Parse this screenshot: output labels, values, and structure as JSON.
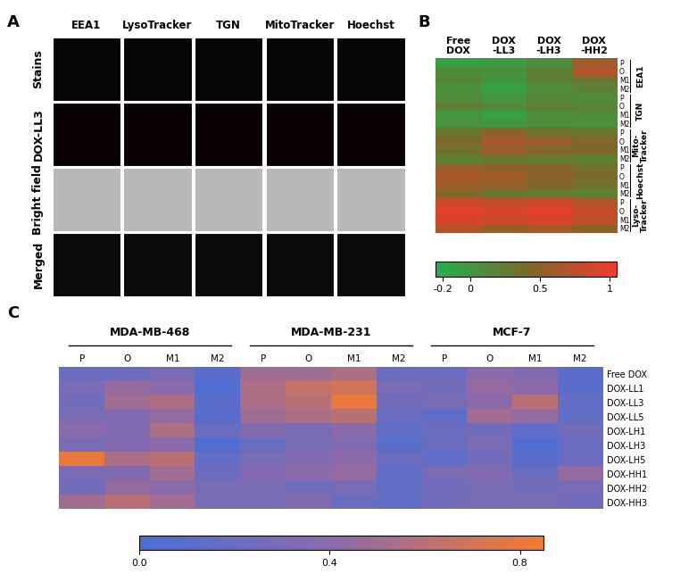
{
  "chart_data": [
    {
      "label": "A",
      "type": "image_grid",
      "columns": [
        "EEA1",
        "LysoTracker",
        "TGN",
        "MitoTracker",
        "Hoechst"
      ],
      "rows": [
        "Stains",
        "DOX-LL3",
        "Bright field",
        "Merged"
      ]
    },
    {
      "label": "B",
      "type": "heatmap",
      "x_categories": [
        "Free\nDOX",
        "DOX\n-LL3",
        "DOX\n-LH3",
        "DOX\n-HH2"
      ],
      "row_labels": [
        "P",
        "O",
        "M1",
        "M2"
      ],
      "groups": [
        {
          "name": "EEA1",
          "cells": [
            [
              -0.1,
              -0.05,
              0.1,
              0.6
            ],
            [
              0.1,
              0.05,
              0.2,
              0.7
            ],
            [
              0.15,
              0.0,
              0.2,
              0.3
            ],
            [
              0.05,
              -0.1,
              0.1,
              0.2
            ]
          ]
        },
        {
          "name": "TGN",
          "cells": [
            [
              0.1,
              0.0,
              0.15,
              0.1
            ],
            [
              0.2,
              0.1,
              0.2,
              0.15
            ],
            [
              0.0,
              -0.1,
              0.1,
              0.1
            ],
            [
              0.05,
              0.0,
              0.1,
              0.05
            ]
          ]
        },
        {
          "name": "Mito-\nTracker",
          "cells": [
            [
              0.3,
              0.5,
              0.35,
              0.3
            ],
            [
              0.4,
              0.65,
              0.55,
              0.45
            ],
            [
              0.35,
              0.55,
              0.45,
              0.4
            ],
            [
              0.2,
              0.3,
              0.25,
              0.2
            ]
          ]
        },
        {
          "name": "Hoechst",
          "cells": [
            [
              0.55,
              0.5,
              0.45,
              0.35
            ],
            [
              0.65,
              0.6,
              0.5,
              0.4
            ],
            [
              0.6,
              0.55,
              0.45,
              0.35
            ],
            [
              0.45,
              0.3,
              0.25,
              0.2
            ]
          ]
        },
        {
          "name": "Lyso-\nTracker",
          "cells": [
            [
              0.85,
              0.8,
              0.85,
              0.7
            ],
            [
              0.95,
              0.9,
              0.95,
              0.8
            ],
            [
              0.9,
              0.85,
              0.9,
              0.75
            ],
            [
              0.7,
              0.55,
              0.65,
              0.5
            ]
          ]
        }
      ],
      "colors": [
        "#22b24c",
        "#7a6a2a",
        "#f23a2a"
      ],
      "colorbar_range": [
        -0.25,
        1.05
      ],
      "colorbar_ticks": [
        -0.2,
        0,
        0.5,
        1
      ]
    },
    {
      "label": "C",
      "type": "heatmap",
      "groups": [
        "MDA-MB-468",
        "MDA-MB-231",
        "MCF-7"
      ],
      "columns": [
        "P",
        "O",
        "M1",
        "M2"
      ],
      "y_categories": [
        "Free DOX",
        "DOX-LL1",
        "DOX-LL3",
        "DOX-LL5",
        "DOX-LH1",
        "DOX-LH3",
        "DOX-LH5",
        "DOX-HH1",
        "DOX-HH2",
        "DOX-HH3"
      ],
      "cells": [
        [
          0.2,
          0.2,
          0.3,
          0.1,
          0.5,
          0.5,
          0.55,
          0.2,
          0.2,
          0.4,
          0.35,
          0.1
        ],
        [
          0.3,
          0.45,
          0.4,
          0.05,
          0.55,
          0.65,
          0.7,
          0.3,
          0.25,
          0.45,
          0.4,
          0.1
        ],
        [
          0.25,
          0.5,
          0.55,
          0.1,
          0.55,
          0.6,
          0.8,
          0.25,
          0.3,
          0.4,
          0.6,
          0.15
        ],
        [
          0.3,
          0.35,
          0.45,
          0.1,
          0.5,
          0.55,
          0.6,
          0.2,
          0.15,
          0.5,
          0.45,
          0.15
        ],
        [
          0.4,
          0.35,
          0.55,
          0.2,
          0.35,
          0.3,
          0.4,
          0.15,
          0.2,
          0.25,
          0.15,
          0.25
        ],
        [
          0.3,
          0.35,
          0.4,
          0.05,
          0.2,
          0.3,
          0.35,
          0.1,
          0.2,
          0.3,
          0.05,
          0.2
        ],
        [
          0.8,
          0.55,
          0.6,
          0.15,
          0.3,
          0.35,
          0.4,
          0.2,
          0.15,
          0.25,
          0.1,
          0.2
        ],
        [
          0.3,
          0.35,
          0.5,
          0.2,
          0.35,
          0.4,
          0.45,
          0.15,
          0.3,
          0.35,
          0.2,
          0.45
        ],
        [
          0.25,
          0.45,
          0.4,
          0.3,
          0.3,
          0.25,
          0.3,
          0.15,
          0.25,
          0.3,
          0.25,
          0.3
        ],
        [
          0.5,
          0.6,
          0.5,
          0.3,
          0.3,
          0.35,
          0.2,
          0.15,
          0.25,
          0.3,
          0.3,
          0.25
        ]
      ],
      "colors": [
        "#4a6fd6",
        "#8f6aa8",
        "#f47a2e"
      ],
      "colorbar_range": [
        0,
        0.85
      ],
      "colorbar_ticks": [
        {
          "value": 0,
          "label": "0.0"
        },
        0.4,
        0.8
      ]
    }
  ]
}
